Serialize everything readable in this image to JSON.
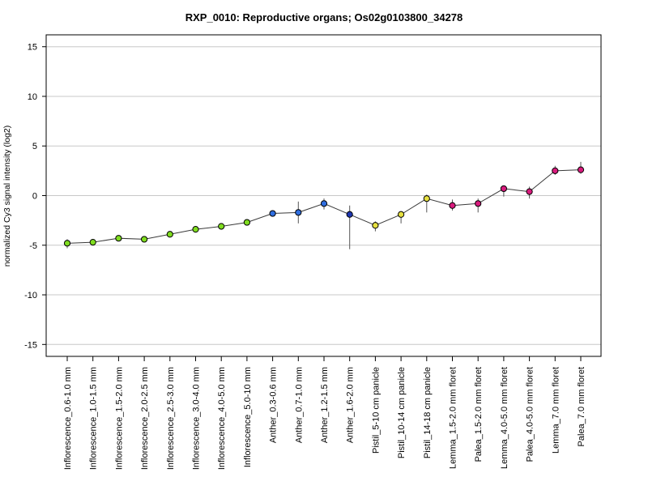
{
  "chart_data": {
    "type": "line",
    "title": "RXP_0010: Reproductive organs; Os02g0103800_34278",
    "xlabel": "",
    "ylabel": "normalized Cy3 signal intensity (log2)",
    "ylim": [
      -16.2,
      16.2
    ],
    "yticks": [
      -15,
      -10,
      -5,
      0,
      5,
      10,
      15
    ],
    "grid": "horizontal",
    "legend": "none",
    "line_color": "#3a3a3a",
    "categories": [
      "Inflorescence_0.6-1.0 mm",
      "Inflorescence_1.0-1.5 mm",
      "Inflorescence_1.5-2.0 mm",
      "Inflorescence_2.0-2.5 mm",
      "Inflorescence_2.5-3.0 mm",
      "Inflorescence_3.0-4.0 mm",
      "Inflorescence_4.0-5.0 mm",
      "Inflorescence_5.0-10 mm",
      "Anther_0.3-0.6 mm",
      "Anther_0.7-1.0 mm",
      "Anther_1.2-1.5 mm",
      "Anther_1.6-2.0 mm",
      "Pistil_5-10 cm panicle",
      "Pistil_10-14 cm panicle",
      "Pistil_14-18 cm panicle",
      "Lemma_1.5-2.0 mm floret",
      "Palea_1.5-2.0 mm floret",
      "Lemma_4.0-5.0 mm floret",
      "Palea_4.0-5.0 mm floret",
      "Lemma_7.0 mm floret",
      "Palea_7.0 mm floret"
    ],
    "values": [
      -4.8,
      -4.7,
      -4.3,
      -4.4,
      -3.9,
      -3.4,
      -3.1,
      -2.7,
      -1.8,
      -1.7,
      -0.8,
      -1.9,
      -3.0,
      -1.9,
      -0.3,
      -1.0,
      -0.8,
      0.7,
      0.4,
      2.5,
      2.6
    ],
    "error_low": [
      -5.3,
      -4.9,
      -4.5,
      -4.6,
      -4.1,
      -3.6,
      -3.3,
      -2.9,
      -2.1,
      -2.8,
      -1.4,
      -5.4,
      -3.6,
      -2.8,
      -1.7,
      -1.5,
      -1.7,
      -0.1,
      -0.3,
      2.1,
      2.2
    ],
    "error_high": [
      -4.4,
      -4.5,
      -4.1,
      -4.2,
      -3.7,
      -3.2,
      -2.9,
      -2.5,
      -1.5,
      -0.6,
      -0.3,
      -1.0,
      -2.6,
      -1.6,
      0.1,
      -0.4,
      -0.3,
      0.9,
      0.9,
      3.0,
      3.4
    ],
    "point_colors": [
      "#7fdc1f",
      "#7fdc1f",
      "#7fdc1f",
      "#7fdc1f",
      "#7fdc1f",
      "#7fdc1f",
      "#7fdc1f",
      "#7fdc1f",
      "#2f6ee0",
      "#2f6ee0",
      "#2f6ee0",
      "#1d35b0",
      "#e6e040",
      "#e6e040",
      "#e6e040",
      "#d81b7d",
      "#d81b7d",
      "#d81b7d",
      "#d81b7d",
      "#d81b7d",
      "#d81b7d"
    ]
  }
}
